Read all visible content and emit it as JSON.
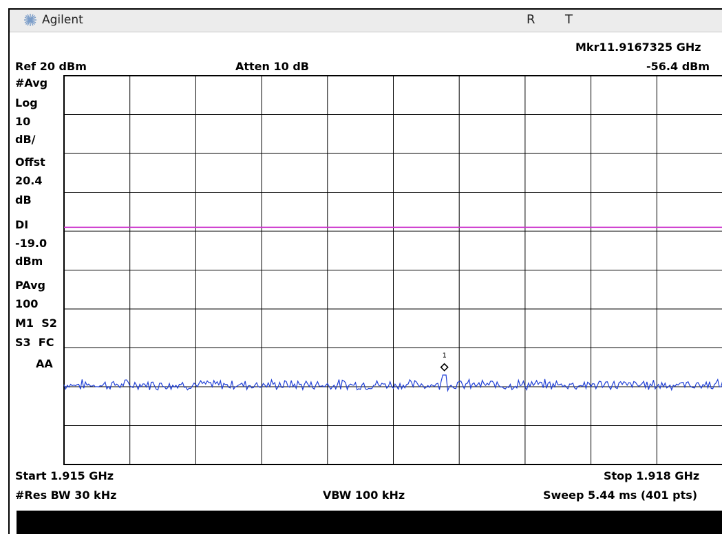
{
  "app": {
    "brand": "Agilent",
    "status_r": "R",
    "status_t": "T"
  },
  "header": {
    "marker_label": "Mkr1",
    "marker_freq": "1.9167325 GHz",
    "marker_level": "-56.4 dBm",
    "ref_level": "Ref 20 dBm",
    "attenuation": "Atten 10 dB"
  },
  "left_panel": {
    "lines": [
      "#Avg",
      "Log",
      "10",
      "dB/",
      "Offst",
      "20.4",
      "dB",
      "DI",
      "-19.0",
      "dBm",
      "PAvg",
      "100",
      "M1  S2",
      "S3  FC",
      "AA"
    ]
  },
  "footer": {
    "start": "Start 1.915 GHz",
    "stop": "Stop 1.918 GHz",
    "res_bw": "#Res BW 30 kHz",
    "vbw": "VBW 100 kHz",
    "sweep": "Sweep 5.44 ms (401 pts)"
  },
  "chart_data": {
    "type": "line",
    "x_unit": "GHz",
    "y_unit": "dBm",
    "xlim": [
      1.915,
      1.918
    ],
    "ylim": [
      -80,
      20
    ],
    "grid": true,
    "display_line": {
      "label": "DI",
      "value": -19.0,
      "color": "#cc33cc"
    },
    "marker": {
      "label": "1",
      "x": 1.9167325,
      "y": -56.4
    },
    "series": [
      {
        "color": "#1f3fd6",
        "noise_floor": -59.5
      }
    ]
  },
  "colors": {
    "trace": "#1f3fd6",
    "display_line": "#cc33cc",
    "grid": "#000000",
    "bottom_bar": "#000000"
  }
}
